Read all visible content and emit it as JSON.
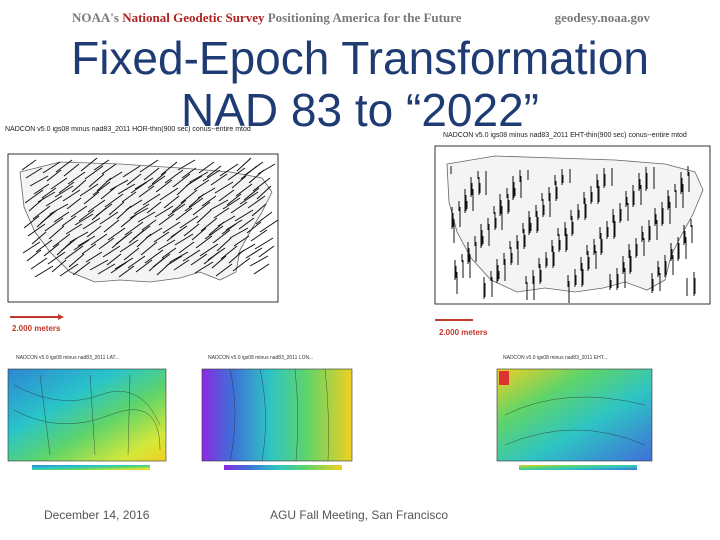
{
  "header": {
    "agency_prefix": "NOAA's ",
    "agency_name": "National Geodetic Survey",
    "agency_tagline": " Positioning America for the Future",
    "website": "geodesy.noaa.gov"
  },
  "title": {
    "line1": "Fixed-Epoch Transformation",
    "line2": "NAD 83 to “2022”"
  },
  "maps": {
    "horizontal": {
      "caption": "NADCON v5.0 igs08 minus nad83_2011 HOR-thin(900 sec) conus--entire mtod",
      "scale_label": "2.000 meters"
    },
    "ellipsoid_height": {
      "caption": "NADCON v5.0 igs08 minus nad83_2011 EHT-thin(900 sec) conus--entire mtod",
      "scale_label": "2.000 meters"
    },
    "small": [
      {
        "caption": "NADCON v5.0 igs08 minus nad83_2011 LAT..."
      },
      {
        "caption": "NADCON v5.0 igs08 minus nad83_2011 LON..."
      },
      {
        "caption": "NADCON v5.0 igs08 minus nad83_2011 EHT..."
      }
    ]
  },
  "footer": {
    "date": "December 14, 2016",
    "event": "AGU Fall Meeting, San Francisco"
  },
  "colors": {
    "title": "#1f3b73",
    "agency_name": "#b22222",
    "scale": "#c0392b"
  }
}
